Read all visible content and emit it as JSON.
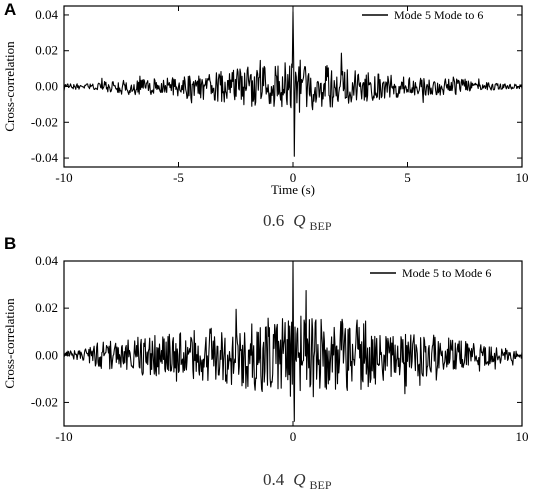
{
  "chart_data": [
    {
      "panel": "A",
      "type": "line",
      "caption": {
        "value": "0.6",
        "symbol": "Q",
        "subscript": "BEP"
      },
      "xlabel": "Time (s)",
      "ylabel": "Cross-correlation",
      "xlim": [
        -10,
        10
      ],
      "ylim": [
        -0.045,
        0.045
      ],
      "xticks": [
        -10,
        -5,
        0,
        5,
        10
      ],
      "yticks": [
        -0.04,
        -0.02,
        0.0,
        0.02,
        0.04
      ],
      "ytick_labels": [
        "-0.04",
        "-0.02",
        "0.00",
        "0.02",
        "0.04"
      ],
      "grid": false,
      "legend_position": "top-right",
      "series": [
        {
          "name": "Mode 5 Mode to 6",
          "color": "#000000",
          "signal": {
            "x_range": [
              -10,
              10
            ],
            "peak": {
              "x": 0,
              "max": 0.042,
              "min": -0.039
            },
            "envelope": [
              [
                -10,
                0.0012
              ],
              [
                -8.5,
                0.002
              ],
              [
                -7.5,
                0.004
              ],
              [
                -5,
                0.005
              ],
              [
                -3,
                0.008
              ],
              [
                -1,
                0.012
              ],
              [
                0,
                0.014
              ],
              [
                1,
                0.012
              ],
              [
                3,
                0.008
              ],
              [
                5,
                0.005
              ],
              [
                7.5,
                0.004
              ],
              [
                8.5,
                0.002
              ],
              [
                10,
                0.0012
              ]
            ]
          }
        }
      ]
    },
    {
      "panel": "B",
      "type": "line",
      "caption": {
        "value": "0.4",
        "symbol": "Q",
        "subscript": "BEP"
      },
      "xlabel": "",
      "ylabel": "Cross-correlation",
      "xlim": [
        -10,
        10
      ],
      "ylim": [
        -0.03,
        0.04
      ],
      "xticks": [
        -10,
        0,
        10
      ],
      "yticks": [
        -0.02,
        0.0,
        0.02,
        0.04
      ],
      "ytick_labels": [
        "-0.02",
        "0.00",
        "0.02",
        "0.04"
      ],
      "grid": false,
      "legend_position": "top-right",
      "series": [
        {
          "name": "Mode 5 to Mode 6",
          "color": "#000000",
          "signal": {
            "x_range": [
              -10,
              10
            ],
            "peak": {
              "x": 0,
              "max": 0.04,
              "min": -0.028
            },
            "envelope": [
              [
                -10,
                0.0015
              ],
              [
                -9,
                0.0025
              ],
              [
                -8.5,
                0.005
              ],
              [
                -6,
                0.008
              ],
              [
                -4,
                0.01
              ],
              [
                -2,
                0.013
              ],
              [
                0,
                0.016
              ],
              [
                2,
                0.013
              ],
              [
                3,
                0.015
              ],
              [
                4,
                0.01
              ],
              [
                6,
                0.008
              ],
              [
                8.5,
                0.004
              ],
              [
                10,
                0.0015
              ]
            ]
          }
        }
      ]
    }
  ]
}
